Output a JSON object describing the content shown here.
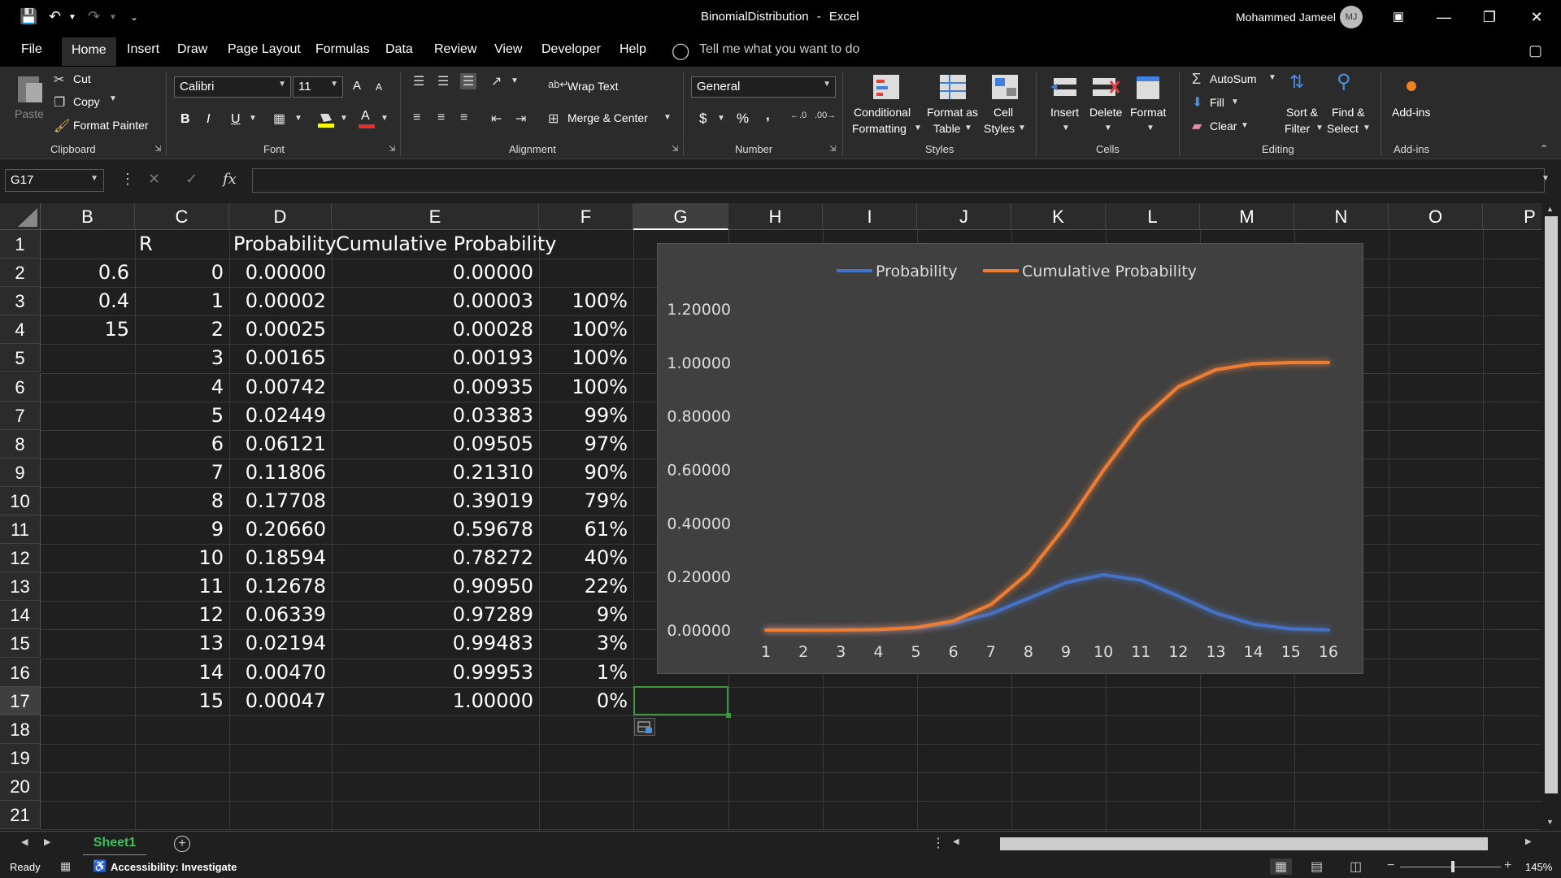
{
  "titlebar": {
    "doc_title": "BinomialDistribution",
    "separator": "-",
    "app_name": "Excel",
    "user_name": "Mohammed Jameel",
    "user_initials": "MJ"
  },
  "menu": {
    "tabs": [
      "File",
      "Home",
      "Insert",
      "Draw",
      "Page Layout",
      "Formulas",
      "Data",
      "Review",
      "View",
      "Developer",
      "Help"
    ],
    "active": "Home",
    "tell_me": "Tell me what you want to do"
  },
  "ribbon": {
    "clipboard": {
      "paste": "Paste",
      "cut": "Cut",
      "copy": "Copy",
      "format_painter": "Format Painter",
      "group": "Clipboard"
    },
    "font": {
      "name": "Calibri",
      "size": "11",
      "bold": "B",
      "italic": "I",
      "underline": "U",
      "grow": "A",
      "shrink": "A",
      "font_color": "A",
      "group": "Font"
    },
    "alignment": {
      "wrap": "Wrap Text",
      "merge": "Merge & Center",
      "group": "Alignment"
    },
    "number": {
      "format": "General",
      "currency": "$",
      "percent": "%",
      "comma": ",",
      "group": "Number"
    },
    "styles": {
      "cond1": "Conditional",
      "cond2": "Formatting",
      "table1": "Format as",
      "table2": "Table",
      "cell1": "Cell",
      "cell2": "Styles",
      "group": "Styles"
    },
    "cells": {
      "insert": "Insert",
      "delete": "Delete",
      "format": "Format",
      "group": "Cells"
    },
    "editing": {
      "autosum": "AutoSum",
      "fill": "Fill",
      "clear": "Clear",
      "sort1": "Sort &",
      "sort2": "Filter",
      "find1": "Find &",
      "find2": "Select",
      "group": "Editing"
    },
    "addins": {
      "label": "Add-ins",
      "group": "Add-ins"
    }
  },
  "formula_bar": {
    "name_box": "G17",
    "fx": "fx",
    "value": ""
  },
  "grid": {
    "columns": [
      "B",
      "C",
      "D",
      "E",
      "F",
      "G",
      "H",
      "I",
      "J",
      "K",
      "L",
      "M",
      "N",
      "O",
      "P"
    ],
    "rows": [
      "1",
      "2",
      "3",
      "4",
      "5",
      "6",
      "7",
      "8",
      "9",
      "10",
      "11",
      "12",
      "13",
      "14",
      "15",
      "16",
      "17",
      "18",
      "19",
      "20",
      "21"
    ],
    "selected_column": "G",
    "selected_row": "17",
    "headers": {
      "c1": "R",
      "d1": "Probability",
      "e1": "Cumulative Probability"
    },
    "col_b": [
      "0.6",
      "0.4",
      "15"
    ],
    "col_c": [
      "0",
      "1",
      "2",
      "3",
      "4",
      "5",
      "6",
      "7",
      "8",
      "9",
      "10",
      "11",
      "12",
      "13",
      "14",
      "15"
    ],
    "col_d": [
      "0.00000",
      "0.00002",
      "0.00025",
      "0.00165",
      "0.00742",
      "0.02449",
      "0.06121",
      "0.11806",
      "0.17708",
      "0.20660",
      "0.18594",
      "0.12678",
      "0.06339",
      "0.02194",
      "0.00470",
      "0.00047"
    ],
    "col_e": [
      "0.00000",
      "0.00003",
      "0.00028",
      "0.00193",
      "0.00935",
      "0.03383",
      "0.09505",
      "0.21310",
      "0.39019",
      "0.59678",
      "0.78272",
      "0.90950",
      "0.97289",
      "0.99483",
      "0.99953",
      "1.00000"
    ],
    "col_f": [
      "100%",
      "100%",
      "100%",
      "100%",
      "99%",
      "97%",
      "90%",
      "79%",
      "61%",
      "40%",
      "22%",
      "9%",
      "3%",
      "1%",
      "0%"
    ]
  },
  "chart_data": {
    "type": "line",
    "categories": [
      "1",
      "2",
      "3",
      "4",
      "5",
      "6",
      "7",
      "8",
      "9",
      "10",
      "11",
      "12",
      "13",
      "14",
      "15",
      "16"
    ],
    "series": [
      {
        "name": "Probability",
        "color": "#4472c4",
        "values": [
          0.0,
          2e-05,
          0.00025,
          0.00165,
          0.00742,
          0.02449,
          0.06121,
          0.11806,
          0.17708,
          0.2066,
          0.18594,
          0.12678,
          0.06339,
          0.02194,
          0.0047,
          0.00047
        ]
      },
      {
        "name": "Cumulative Probability",
        "color": "#ed7d31",
        "values": [
          0.0,
          3e-05,
          0.00028,
          0.00193,
          0.00935,
          0.03383,
          0.09505,
          0.2131,
          0.39019,
          0.59678,
          0.78272,
          0.9095,
          0.97289,
          0.99483,
          0.99953,
          1.0
        ]
      }
    ],
    "y_ticks": [
      "0.00000",
      "0.20000",
      "0.40000",
      "0.60000",
      "0.80000",
      "1.00000",
      "1.20000"
    ],
    "ylim": [
      0,
      1.2
    ],
    "legend": "top",
    "grid": false,
    "title": ""
  },
  "sheets": {
    "tabs": [
      "Sheet1"
    ],
    "active": "Sheet1"
  },
  "status": {
    "ready": "Ready",
    "accessibility": "Accessibility: Investigate",
    "zoom": "145%"
  }
}
